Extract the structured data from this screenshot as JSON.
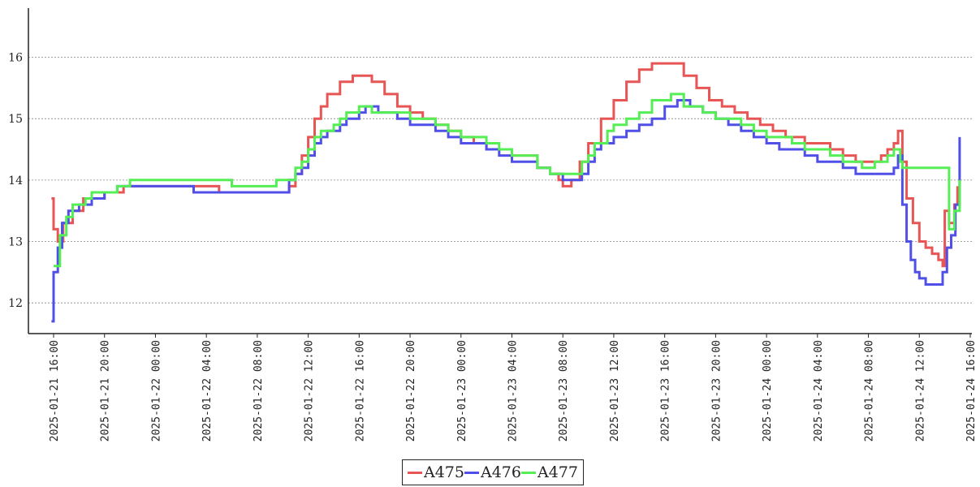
{
  "chart_data": {
    "type": "line",
    "title": "",
    "xlabel": "",
    "ylabel": "",
    "ylim": [
      11.5,
      16.8
    ],
    "yticks": [
      12,
      13,
      14,
      15,
      16
    ],
    "grid": "horizontal dotted",
    "legend_placement": "bottom-center",
    "xticks": [
      "2025-01-21 16:00",
      "2025-01-21 20:00",
      "2025-01-22 00:00",
      "2025-01-22 04:00",
      "2025-01-22 08:00",
      "2025-01-22 12:00",
      "2025-01-22 16:00",
      "2025-01-22 20:00",
      "2025-01-23 00:00",
      "2025-01-23 04:00",
      "2025-01-23 08:00",
      "2025-01-23 12:00",
      "2025-01-23 16:00",
      "2025-01-23 20:00",
      "2025-01-24 00:00",
      "2025-01-24 04:00",
      "2025-01-24 08:00",
      "2025-01-24 12:00",
      "2025-01-24 16:00"
    ],
    "series": [
      {
        "name": "A475",
        "color": "#e85555",
        "points": [
          [
            "2025-01-21 15:50",
            13.7
          ],
          [
            "2025-01-21 16:00",
            13.2
          ],
          [
            "2025-01-21 16:20",
            13.0
          ],
          [
            "2025-01-21 16:45",
            13.3
          ],
          [
            "2025-01-21 17:30",
            13.5
          ],
          [
            "2025-01-21 18:20",
            13.7
          ],
          [
            "2025-01-21 20:00",
            13.8
          ],
          [
            "2025-01-21 21:30",
            13.9
          ],
          [
            "2025-01-22 04:00",
            13.9
          ],
          [
            "2025-01-22 05:00",
            13.8
          ],
          [
            "2025-01-22 10:00",
            13.8
          ],
          [
            "2025-01-22 10:30",
            13.9
          ],
          [
            "2025-01-22 11:00",
            14.1
          ],
          [
            "2025-01-22 11:30",
            14.4
          ],
          [
            "2025-01-22 12:00",
            14.7
          ],
          [
            "2025-01-22 12:30",
            15.0
          ],
          [
            "2025-01-22 13:00",
            15.2
          ],
          [
            "2025-01-22 13:30",
            15.4
          ],
          [
            "2025-01-22 14:30",
            15.6
          ],
          [
            "2025-01-22 15:30",
            15.7
          ],
          [
            "2025-01-22 17:00",
            15.6
          ],
          [
            "2025-01-22 18:00",
            15.4
          ],
          [
            "2025-01-22 19:00",
            15.2
          ],
          [
            "2025-01-22 20:00",
            15.1
          ],
          [
            "2025-01-22 21:00",
            15.0
          ],
          [
            "2025-01-22 22:00",
            14.9
          ],
          [
            "2025-01-22 23:00",
            14.8
          ],
          [
            "2025-01-23 00:00",
            14.7
          ],
          [
            "2025-01-23 01:00",
            14.6
          ],
          [
            "2025-01-23 02:00",
            14.5
          ],
          [
            "2025-01-23 03:00",
            14.5
          ],
          [
            "2025-01-23 04:00",
            14.4
          ],
          [
            "2025-01-23 05:00",
            14.4
          ],
          [
            "2025-01-23 06:00",
            14.2
          ],
          [
            "2025-01-23 07:00",
            14.1
          ],
          [
            "2025-01-23 07:40",
            14.0
          ],
          [
            "2025-01-23 08:00",
            13.9
          ],
          [
            "2025-01-23 08:40",
            14.0
          ],
          [
            "2025-01-23 09:20",
            14.3
          ],
          [
            "2025-01-23 10:00",
            14.6
          ],
          [
            "2025-01-23 11:00",
            15.0
          ],
          [
            "2025-01-23 12:00",
            15.3
          ],
          [
            "2025-01-23 13:00",
            15.6
          ],
          [
            "2025-01-23 14:00",
            15.8
          ],
          [
            "2025-01-23 15:00",
            15.9
          ],
          [
            "2025-01-23 16:30",
            15.9
          ],
          [
            "2025-01-23 17:30",
            15.7
          ],
          [
            "2025-01-23 18:30",
            15.5
          ],
          [
            "2025-01-23 19:30",
            15.3
          ],
          [
            "2025-01-23 20:30",
            15.2
          ],
          [
            "2025-01-23 21:30",
            15.1
          ],
          [
            "2025-01-23 22:30",
            15.0
          ],
          [
            "2025-01-23 23:30",
            14.9
          ],
          [
            "2025-01-24 00:30",
            14.8
          ],
          [
            "2025-01-24 01:30",
            14.7
          ],
          [
            "2025-01-24 03:00",
            14.6
          ],
          [
            "2025-01-24 05:00",
            14.5
          ],
          [
            "2025-01-24 06:00",
            14.4
          ],
          [
            "2025-01-24 07:00",
            14.3
          ],
          [
            "2025-01-24 08:30",
            14.3
          ],
          [
            "2025-01-24 09:00",
            14.4
          ],
          [
            "2025-01-24 09:30",
            14.5
          ],
          [
            "2025-01-24 10:00",
            14.6
          ],
          [
            "2025-01-24 10:20",
            14.8
          ],
          [
            "2025-01-24 10:40",
            14.3
          ],
          [
            "2025-01-24 11:00",
            13.7
          ],
          [
            "2025-01-24 11:30",
            13.3
          ],
          [
            "2025-01-24 12:00",
            13.0
          ],
          [
            "2025-01-24 12:30",
            12.9
          ],
          [
            "2025-01-24 13:00",
            12.8
          ],
          [
            "2025-01-24 13:30",
            12.7
          ],
          [
            "2025-01-24 13:50",
            12.6
          ],
          [
            "2025-01-24 14:00",
            13.5
          ],
          [
            "2025-01-24 14:20",
            13.3
          ],
          [
            "2025-01-24 14:45",
            13.6
          ],
          [
            "2025-01-24 15:00",
            13.9
          ]
        ]
      },
      {
        "name": "A476",
        "color": "#5050e8",
        "points": [
          [
            "2025-01-21 15:50",
            11.7
          ],
          [
            "2025-01-21 16:00",
            12.5
          ],
          [
            "2025-01-21 16:20",
            12.9
          ],
          [
            "2025-01-21 16:40",
            13.3
          ],
          [
            "2025-01-21 17:10",
            13.5
          ],
          [
            "2025-01-21 18:00",
            13.6
          ],
          [
            "2025-01-21 19:00",
            13.7
          ],
          [
            "2025-01-21 20:00",
            13.8
          ],
          [
            "2025-01-21 21:00",
            13.9
          ],
          [
            "2025-01-22 02:00",
            13.9
          ],
          [
            "2025-01-22 03:00",
            13.8
          ],
          [
            "2025-01-22 06:00",
            13.8
          ],
          [
            "2025-01-22 07:00",
            13.8
          ],
          [
            "2025-01-22 10:00",
            13.8
          ],
          [
            "2025-01-22 10:30",
            14.0
          ],
          [
            "2025-01-22 11:00",
            14.1
          ],
          [
            "2025-01-22 11:30",
            14.2
          ],
          [
            "2025-01-22 12:00",
            14.4
          ],
          [
            "2025-01-22 12:30",
            14.6
          ],
          [
            "2025-01-22 13:00",
            14.7
          ],
          [
            "2025-01-22 13:30",
            14.8
          ],
          [
            "2025-01-22 14:30",
            14.9
          ],
          [
            "2025-01-22 15:00",
            15.0
          ],
          [
            "2025-01-22 16:00",
            15.1
          ],
          [
            "2025-01-22 16:30",
            15.2
          ],
          [
            "2025-01-22 17:30",
            15.1
          ],
          [
            "2025-01-22 19:00",
            15.0
          ],
          [
            "2025-01-22 20:00",
            14.9
          ],
          [
            "2025-01-22 21:00",
            14.9
          ],
          [
            "2025-01-22 22:00",
            14.8
          ],
          [
            "2025-01-22 23:00",
            14.7
          ],
          [
            "2025-01-23 00:00",
            14.6
          ],
          [
            "2025-01-23 02:00",
            14.5
          ],
          [
            "2025-01-23 03:00",
            14.4
          ],
          [
            "2025-01-23 04:00",
            14.3
          ],
          [
            "2025-01-23 05:00",
            14.3
          ],
          [
            "2025-01-23 06:00",
            14.2
          ],
          [
            "2025-01-23 07:00",
            14.1
          ],
          [
            "2025-01-23 08:00",
            14.0
          ],
          [
            "2025-01-23 09:00",
            14.0
          ],
          [
            "2025-01-23 09:30",
            14.1
          ],
          [
            "2025-01-23 10:00",
            14.3
          ],
          [
            "2025-01-23 10:30",
            14.5
          ],
          [
            "2025-01-23 11:00",
            14.6
          ],
          [
            "2025-01-23 12:00",
            14.7
          ],
          [
            "2025-01-23 13:00",
            14.8
          ],
          [
            "2025-01-23 14:00",
            14.9
          ],
          [
            "2025-01-23 15:00",
            15.0
          ],
          [
            "2025-01-23 16:00",
            15.2
          ],
          [
            "2025-01-23 17:00",
            15.3
          ],
          [
            "2025-01-23 18:00",
            15.2
          ],
          [
            "2025-01-23 19:00",
            15.1
          ],
          [
            "2025-01-23 20:00",
            15.0
          ],
          [
            "2025-01-23 21:00",
            14.9
          ],
          [
            "2025-01-23 22:00",
            14.8
          ],
          [
            "2025-01-23 23:00",
            14.7
          ],
          [
            "2025-01-24 00:00",
            14.6
          ],
          [
            "2025-01-24 01:00",
            14.5
          ],
          [
            "2025-01-24 03:00",
            14.4
          ],
          [
            "2025-01-24 04:00",
            14.3
          ],
          [
            "2025-01-24 06:00",
            14.2
          ],
          [
            "2025-01-24 07:00",
            14.1
          ],
          [
            "2025-01-24 09:00",
            14.1
          ],
          [
            "2025-01-24 10:00",
            14.2
          ],
          [
            "2025-01-24 10:20",
            14.4
          ],
          [
            "2025-01-24 10:40",
            13.6
          ],
          [
            "2025-01-24 11:00",
            13.0
          ],
          [
            "2025-01-24 11:20",
            12.7
          ],
          [
            "2025-01-24 11:40",
            12.5
          ],
          [
            "2025-01-24 12:00",
            12.4
          ],
          [
            "2025-01-24 12:30",
            12.3
          ],
          [
            "2025-01-24 13:30",
            12.3
          ],
          [
            "2025-01-24 13:50",
            12.5
          ],
          [
            "2025-01-24 14:10",
            12.9
          ],
          [
            "2025-01-24 14:30",
            13.1
          ],
          [
            "2025-01-24 14:50",
            13.6
          ],
          [
            "2025-01-24 15:10",
            14.7
          ]
        ]
      },
      {
        "name": "A477",
        "color": "#55ee55",
        "points": [
          [
            "2025-01-21 16:00",
            12.6
          ],
          [
            "2025-01-21 16:30",
            13.1
          ],
          [
            "2025-01-21 17:00",
            13.4
          ],
          [
            "2025-01-21 17:30",
            13.6
          ],
          [
            "2025-01-21 18:30",
            13.7
          ],
          [
            "2025-01-21 19:00",
            13.8
          ],
          [
            "2025-01-21 21:00",
            13.9
          ],
          [
            "2025-01-21 22:00",
            14.0
          ],
          [
            "2025-01-22 05:00",
            14.0
          ],
          [
            "2025-01-22 06:00",
            13.9
          ],
          [
            "2025-01-22 09:00",
            13.9
          ],
          [
            "2025-01-22 09:30",
            14.0
          ],
          [
            "2025-01-22 10:30",
            14.0
          ],
          [
            "2025-01-22 11:00",
            14.2
          ],
          [
            "2025-01-22 11:30",
            14.3
          ],
          [
            "2025-01-22 12:00",
            14.5
          ],
          [
            "2025-01-22 12:30",
            14.7
          ],
          [
            "2025-01-22 13:00",
            14.8
          ],
          [
            "2025-01-22 14:00",
            14.9
          ],
          [
            "2025-01-22 14:30",
            15.0
          ],
          [
            "2025-01-22 15:00",
            15.1
          ],
          [
            "2025-01-22 16:00",
            15.2
          ],
          [
            "2025-01-22 17:00",
            15.1
          ],
          [
            "2025-01-22 20:00",
            15.0
          ],
          [
            "2025-01-22 22:00",
            14.9
          ],
          [
            "2025-01-22 23:00",
            14.8
          ],
          [
            "2025-01-23 00:00",
            14.7
          ],
          [
            "2025-01-23 02:00",
            14.6
          ],
          [
            "2025-01-23 03:00",
            14.5
          ],
          [
            "2025-01-23 04:00",
            14.4
          ],
          [
            "2025-01-23 06:00",
            14.2
          ],
          [
            "2025-01-23 07:00",
            14.1
          ],
          [
            "2025-01-23 08:30",
            14.1
          ],
          [
            "2025-01-23 09:30",
            14.3
          ],
          [
            "2025-01-23 10:00",
            14.4
          ],
          [
            "2025-01-23 10:30",
            14.6
          ],
          [
            "2025-01-23 11:30",
            14.8
          ],
          [
            "2025-01-23 12:00",
            14.9
          ],
          [
            "2025-01-23 13:00",
            15.0
          ],
          [
            "2025-01-23 14:00",
            15.1
          ],
          [
            "2025-01-23 15:00",
            15.3
          ],
          [
            "2025-01-23 16:30",
            15.4
          ],
          [
            "2025-01-23 17:30",
            15.2
          ],
          [
            "2025-01-23 19:00",
            15.1
          ],
          [
            "2025-01-23 20:00",
            15.0
          ],
          [
            "2025-01-23 22:00",
            14.9
          ],
          [
            "2025-01-23 23:00",
            14.8
          ],
          [
            "2025-01-24 00:00",
            14.7
          ],
          [
            "2025-01-24 02:00",
            14.6
          ],
          [
            "2025-01-24 03:00",
            14.5
          ],
          [
            "2025-01-24 05:00",
            14.4
          ],
          [
            "2025-01-24 06:00",
            14.3
          ],
          [
            "2025-01-24 07:30",
            14.2
          ],
          [
            "2025-01-24 08:30",
            14.3
          ],
          [
            "2025-01-24 09:30",
            14.4
          ],
          [
            "2025-01-24 10:00",
            14.5
          ],
          [
            "2025-01-24 10:30",
            14.3
          ],
          [
            "2025-01-24 10:40",
            14.2
          ],
          [
            "2025-01-24 14:20",
            13.2
          ],
          [
            "2025-01-24 14:45",
            13.5
          ],
          [
            "2025-01-24 15:10",
            14.0
          ]
        ]
      }
    ]
  }
}
